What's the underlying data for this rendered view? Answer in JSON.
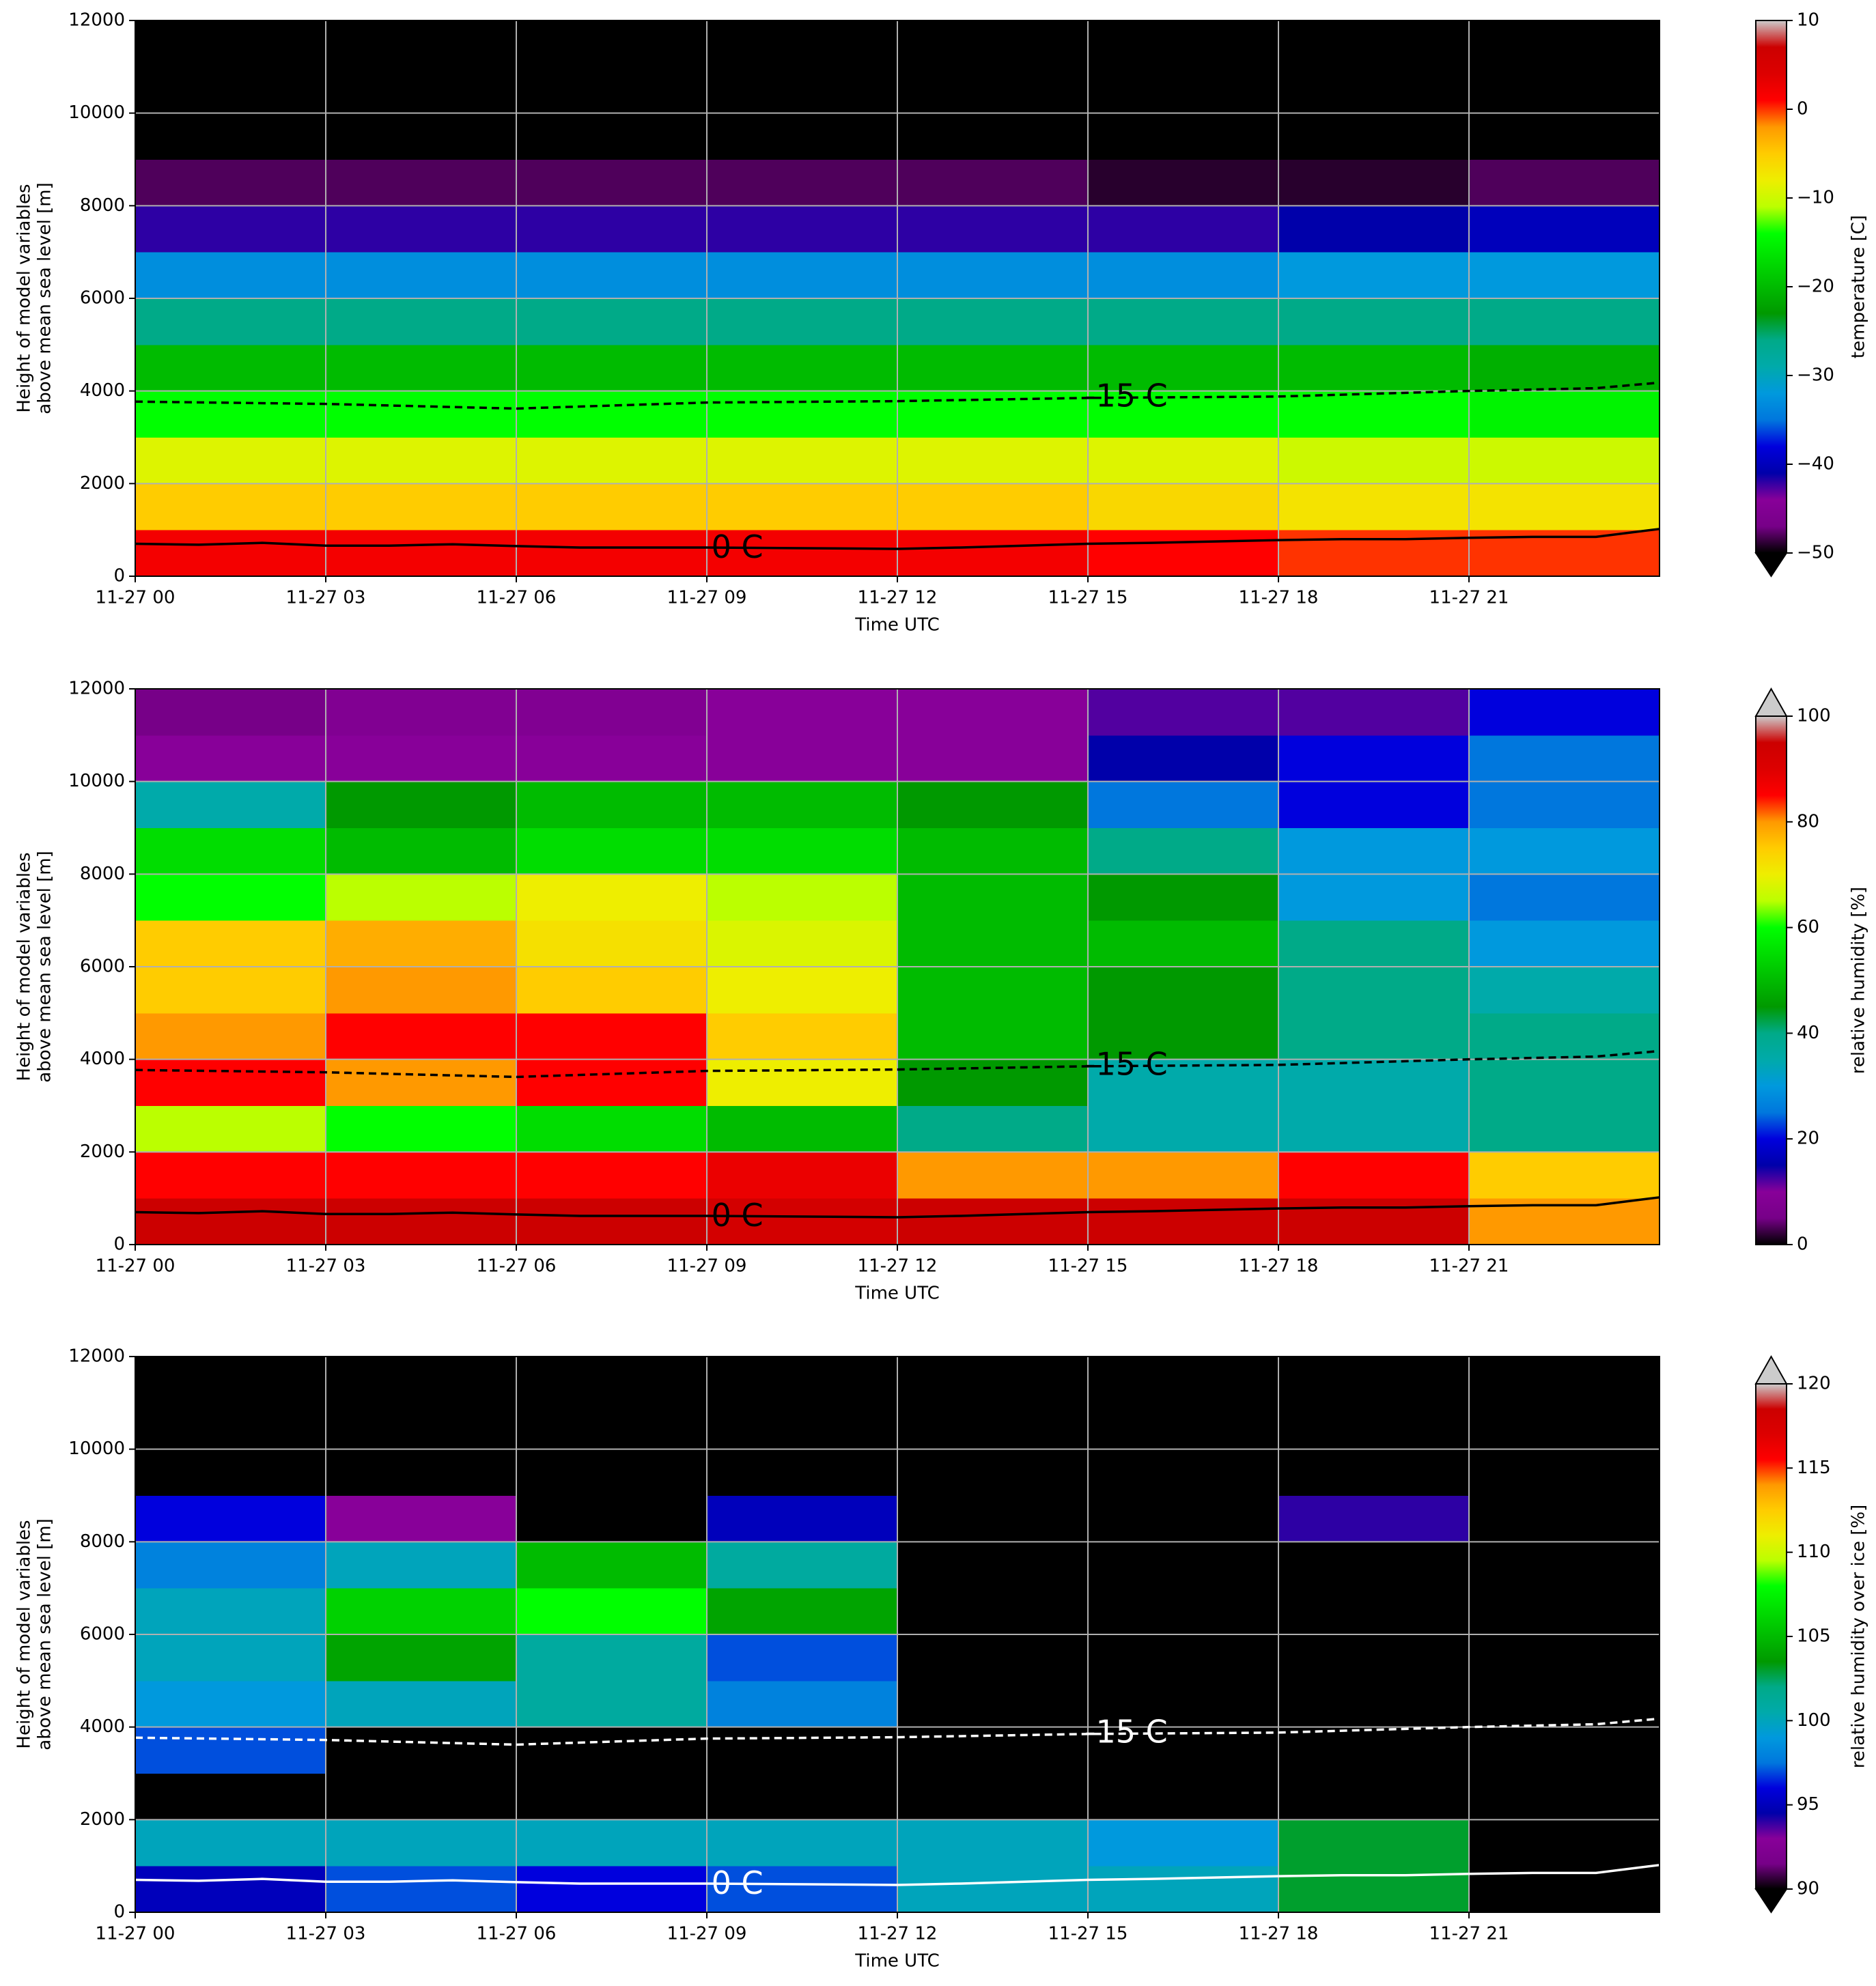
{
  "chart_data": [
    {
      "type": "heatmap",
      "xlabel": "Time UTC",
      "ylabel": [
        "Height of model variables",
        "above mean sea level [m]"
      ],
      "xlim": [
        0,
        24
      ],
      "ylim": [
        0,
        12000
      ],
      "xticks": [
        {
          "value": 0,
          "label": "11-27 00"
        },
        {
          "value": 3,
          "label": "11-27 03"
        },
        {
          "value": 6,
          "label": "11-27 06"
        },
        {
          "value": 9,
          "label": "11-27 09"
        },
        {
          "value": 12,
          "label": "11-27 12"
        },
        {
          "value": 15,
          "label": "11-27 15"
        },
        {
          "value": 18,
          "label": "11-27 18"
        },
        {
          "value": 21,
          "label": "11-27 21"
        }
      ],
      "yticks": [
        0,
        2000,
        4000,
        6000,
        8000,
        10000,
        12000
      ],
      "grid": true,
      "xbins": [
        0,
        3,
        6,
        9,
        12,
        15,
        18,
        21,
        24
      ],
      "ybins": [
        0,
        1000,
        2000,
        3000,
        4000,
        5000,
        6000,
        7000,
        8000,
        9000,
        10000,
        11000,
        12000
      ],
      "values": [
        [
          2,
          2,
          2,
          2,
          2,
          1,
          0,
          0
        ],
        [
          -5,
          -5,
          -5,
          -5,
          -5,
          -6,
          -7,
          -7
        ],
        [
          -9,
          -9,
          -9,
          -9,
          -9,
          -9,
          -10,
          -10
        ],
        [
          -14,
          -14,
          -14,
          -14,
          -14,
          -14,
          -14,
          -15
        ],
        [
          -20,
          -20,
          -20,
          -20,
          -20,
          -20,
          -20,
          -21
        ],
        [
          -26,
          -26,
          -26,
          -26,
          -26,
          -26,
          -26,
          -26
        ],
        [
          -33,
          -33,
          -33,
          -33,
          -33,
          -33,
          -32,
          -32
        ],
        [
          -42,
          -42,
          -42,
          -42,
          -42,
          -42,
          -41,
          -40
        ],
        [
          -48,
          -48,
          -48,
          -48,
          -48,
          -49,
          -49,
          -48
        ],
        [
          -56,
          -56,
          -56,
          -56,
          -56,
          -56,
          -56,
          -50
        ],
        [
          -56,
          -56,
          -56,
          -56,
          -56,
          -56,
          -56,
          -56
        ],
        [
          -56,
          -56,
          -56,
          -56,
          -56,
          -56,
          -56,
          -56
        ]
      ],
      "colormap": [
        "#000000",
        "#770088",
        "#880099",
        "#0000aa",
        "#0000dd",
        "#0077dd",
        "#0099dd",
        "#00aaaa",
        "#00aa88",
        "#009900",
        "#00bb00",
        "#00dd00",
        "#00ff00",
        "#bbff00",
        "#eeee00",
        "#ffcc00",
        "#ff9900",
        "#ff0000",
        "#dd0000",
        "#cc0000",
        "#cccccc"
      ],
      "colorbar": {
        "label": "temperature [C]",
        "lim": [
          -50,
          10
        ],
        "extend": "min",
        "ticks": [
          10,
          0,
          {
            "value": -10,
            "label": "−10"
          },
          {
            "value": -20,
            "label": "−20"
          },
          {
            "value": -30,
            "label": "−30"
          },
          {
            "value": -40,
            "label": "−40"
          },
          {
            "value": -50,
            "label": "−50"
          }
        ]
      },
      "contours": [
        {
          "label": "0 C",
          "color": "#000000",
          "dashed": false,
          "x": [
            0,
            1,
            2,
            3,
            4,
            5,
            6,
            7,
            8,
            9,
            10,
            11,
            12,
            13,
            14,
            15,
            16,
            17,
            18,
            19,
            20,
            21,
            22,
            23,
            24
          ],
          "y": [
            700,
            680,
            720,
            660,
            660,
            690,
            650,
            620,
            620,
            620,
            610,
            600,
            590,
            620,
            660,
            700,
            720,
            750,
            780,
            800,
            800,
            830,
            850,
            850,
            1020
          ]
        },
        {
          "label": "-15 C",
          "color": "#000000",
          "dashed": true,
          "x": [
            0,
            3,
            6,
            9,
            12,
            15,
            18,
            21,
            23,
            24
          ],
          "y": [
            3770,
            3720,
            3620,
            3750,
            3780,
            3850,
            3880,
            4000,
            4060,
            4180
          ]
        }
      ]
    },
    {
      "type": "heatmap",
      "xlabel": "Time UTC",
      "ylabel": [
        "Height of model variables",
        "above mean sea level [m]"
      ],
      "xlim": [
        0,
        24
      ],
      "ylim": [
        0,
        12000
      ],
      "xticks": [
        {
          "value": 0,
          "label": "11-27 00"
        },
        {
          "value": 3,
          "label": "11-27 03"
        },
        {
          "value": 6,
          "label": "11-27 06"
        },
        {
          "value": 9,
          "label": "11-27 09"
        },
        {
          "value": 12,
          "label": "11-27 12"
        },
        {
          "value": 15,
          "label": "11-27 15"
        },
        {
          "value": 18,
          "label": "11-27 18"
        },
        {
          "value": 21,
          "label": "11-27 21"
        }
      ],
      "yticks": [
        0,
        2000,
        4000,
        6000,
        8000,
        10000,
        12000
      ],
      "grid": true,
      "xbins": [
        0,
        3,
        6,
        9,
        12,
        15,
        18,
        21,
        24
      ],
      "ybins": [
        0,
        1000,
        2000,
        3000,
        4000,
        5000,
        6000,
        7000,
        8000,
        9000,
        10000,
        11000,
        12000
      ],
      "values": [
        [
          95,
          95,
          95,
          93,
          95,
          95,
          95,
          80
        ],
        [
          85,
          85,
          85,
          88,
          80,
          80,
          85,
          75
        ],
        [
          65,
          60,
          55,
          50,
          40,
          35,
          35,
          40
        ],
        [
          85,
          80,
          85,
          70,
          45,
          35,
          35,
          40
        ],
        [
          80,
          85,
          85,
          75,
          50,
          45,
          40,
          40
        ],
        [
          75,
          80,
          75,
          70,
          50,
          45,
          40,
          35
        ],
        [
          75,
          78,
          72,
          68,
          50,
          50,
          40,
          30
        ],
        [
          60,
          65,
          70,
          65,
          50,
          45,
          30,
          25
        ],
        [
          55,
          50,
          55,
          55,
          50,
          40,
          30,
          30
        ],
        [
          35,
          45,
          50,
          50,
          45,
          25,
          20,
          25
        ],
        [
          10,
          10,
          10,
          10,
          10,
          15,
          20,
          25
        ],
        [
          5,
          8,
          8,
          10,
          10,
          12,
          12,
          20
        ]
      ],
      "colormap": [
        "#000000",
        "#770088",
        "#880099",
        "#0000aa",
        "#0000dd",
        "#0077dd",
        "#0099dd",
        "#00aaaa",
        "#00aa88",
        "#009900",
        "#00bb00",
        "#00dd00",
        "#00ff00",
        "#bbff00",
        "#eeee00",
        "#ffcc00",
        "#ff9900",
        "#ff0000",
        "#dd0000",
        "#cc0000",
        "#cccccc"
      ],
      "colorbar": {
        "label": "relative humidity [%]",
        "lim": [
          0,
          100
        ],
        "extend": "max",
        "ticks": [
          0,
          20,
          40,
          60,
          80,
          100
        ]
      },
      "contours": [
        {
          "label": "0 C",
          "color": "#000000",
          "dashed": false,
          "x": [
            0,
            1,
            2,
            3,
            4,
            5,
            6,
            7,
            8,
            9,
            10,
            11,
            12,
            13,
            14,
            15,
            16,
            17,
            18,
            19,
            20,
            21,
            22,
            23,
            24
          ],
          "y": [
            700,
            680,
            720,
            660,
            660,
            690,
            650,
            620,
            620,
            620,
            610,
            600,
            590,
            620,
            660,
            700,
            720,
            750,
            780,
            800,
            800,
            830,
            850,
            850,
            1020
          ]
        },
        {
          "label": "-15 C",
          "color": "#000000",
          "dashed": true,
          "x": [
            0,
            3,
            6,
            9,
            12,
            15,
            18,
            21,
            23,
            24
          ],
          "y": [
            3770,
            3720,
            3620,
            3750,
            3780,
            3850,
            3880,
            4000,
            4060,
            4180
          ]
        }
      ]
    },
    {
      "type": "heatmap",
      "xlabel": "Time UTC",
      "ylabel": [
        "Height of model variables",
        "above mean sea level [m]"
      ],
      "xlim": [
        0,
        24
      ],
      "ylim": [
        0,
        12000
      ],
      "xticks": [
        {
          "value": 0,
          "label": "11-27 00"
        },
        {
          "value": 3,
          "label": "11-27 03"
        },
        {
          "value": 6,
          "label": "11-27 06"
        },
        {
          "value": 9,
          "label": "11-27 09"
        },
        {
          "value": 12,
          "label": "11-27 12"
        },
        {
          "value": 15,
          "label": "11-27 15"
        },
        {
          "value": 18,
          "label": "11-27 18"
        },
        {
          "value": 21,
          "label": "11-27 21"
        }
      ],
      "yticks": [
        0,
        2000,
        4000,
        6000,
        8000,
        10000,
        12000
      ],
      "grid": true,
      "xbins": [
        0,
        3,
        6,
        9,
        12,
        15,
        18,
        21,
        24
      ],
      "ybins": [
        0,
        1000,
        2000,
        3000,
        4000,
        5000,
        6000,
        7000,
        8000,
        9000,
        10000,
        11000,
        12000
      ],
      "values": [
        [
          95,
          97,
          96,
          97,
          100,
          100,
          103,
          80
        ],
        [
          100,
          100,
          100,
          100,
          100,
          99,
          103,
          80
        ],
        [
          80,
          80,
          80,
          80,
          80,
          80,
          80,
          80
        ],
        [
          97,
          80,
          80,
          80,
          80,
          80,
          80,
          80
        ],
        [
          99,
          100,
          101,
          98,
          80,
          80,
          80,
          80
        ],
        [
          100,
          104,
          101,
          97,
          80,
          80,
          80,
          80
        ],
        [
          100,
          106,
          108,
          104,
          80,
          80,
          80,
          80
        ],
        [
          98,
          100,
          105,
          101,
          80,
          80,
          80,
          80
        ],
        [
          96,
          93,
          80,
          95,
          80,
          80,
          94,
          80
        ],
        [
          80,
          80,
          80,
          80,
          80,
          80,
          80,
          80
        ],
        [
          80,
          80,
          80,
          80,
          80,
          80,
          80,
          80
        ],
        [
          80,
          80,
          80,
          80,
          80,
          80,
          80,
          80
        ]
      ],
      "colormap": [
        "#000000",
        "#770088",
        "#880099",
        "#0000aa",
        "#0000dd",
        "#0077dd",
        "#0099dd",
        "#00aaaa",
        "#00aa88",
        "#009900",
        "#00bb00",
        "#00dd00",
        "#00ff00",
        "#bbff00",
        "#eeee00",
        "#ffcc00",
        "#ff9900",
        "#ff0000",
        "#dd0000",
        "#cc0000",
        "#cccccc"
      ],
      "colorbar": {
        "label": "relative humidity over ice [%]",
        "lim": [
          90,
          120
        ],
        "extend": "both",
        "ticks": [
          90,
          95,
          100,
          105,
          110,
          115,
          120
        ]
      },
      "contours": [
        {
          "label": "0 C",
          "color": "#ffffff",
          "dashed": false,
          "x": [
            0,
            1,
            2,
            3,
            4,
            5,
            6,
            7,
            8,
            9,
            10,
            11,
            12,
            13,
            14,
            15,
            16,
            17,
            18,
            19,
            20,
            21,
            22,
            23,
            24
          ],
          "y": [
            700,
            680,
            720,
            660,
            660,
            690,
            650,
            620,
            620,
            620,
            610,
            600,
            590,
            620,
            660,
            700,
            720,
            750,
            780,
            800,
            800,
            830,
            850,
            850,
            1020
          ]
        },
        {
          "label": "-15 C",
          "color": "#ffffff",
          "dashed": true,
          "x": [
            0,
            3,
            6,
            9,
            12,
            15,
            18,
            21,
            23,
            24
          ],
          "y": [
            3770,
            3720,
            3620,
            3750,
            3780,
            3850,
            3880,
            4000,
            4060,
            4180
          ]
        }
      ]
    }
  ]
}
